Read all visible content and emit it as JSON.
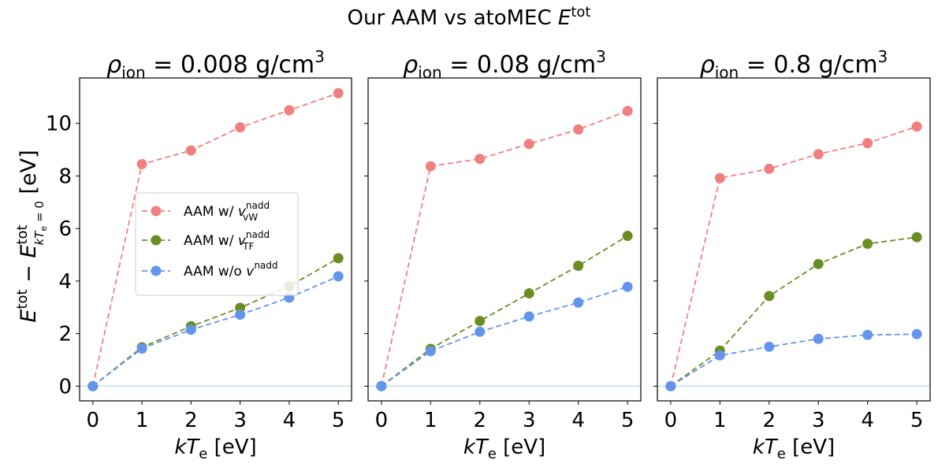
{
  "figure": {
    "suptitle_prefix": "Our AAM vs atoMEC ",
    "suptitle_var": "E",
    "suptitle_sup": "tot"
  },
  "ylabel": {
    "E": "E",
    "tot": "tot",
    "minus": " − ",
    "kTe": "kT",
    "e": "e",
    "eq0": " = 0",
    "unit": " [eV]"
  },
  "xlabel": {
    "k": "kT",
    "e": "e",
    "unit": " [eV]"
  },
  "legend": {
    "entries": [
      {
        "prefix": "AAM w/ ",
        "v": "v",
        "sup": "nadd",
        "sub": "vW"
      },
      {
        "prefix": "AAM w/ ",
        "v": "v",
        "sup": "nadd",
        "sub": "TF"
      },
      {
        "prefix": "AAM w/o ",
        "v": "v",
        "sup": "nadd",
        "sub": ""
      }
    ]
  },
  "colors": {
    "vW": "#f08080",
    "TF": "#6b8e23",
    "none": "#6495ed",
    "baseline": "#add8e6"
  },
  "chart_data": [
    {
      "type": "line",
      "title_rho": "ρ",
      "title_sub": "ion",
      "title_value": " = 0.008 g/cm",
      "title_sup": "3",
      "x": [
        0,
        1,
        2,
        3,
        4,
        5
      ],
      "xticks": [
        "0",
        "1",
        "2",
        "3",
        "4",
        "5"
      ],
      "yticks": [
        "0",
        "2",
        "4",
        "6",
        "8",
        "10"
      ],
      "xlim": [
        -0.27,
        5.27
      ],
      "ylim": [
        -0.56,
        11.73
      ],
      "baseline": 0,
      "series": [
        {
          "name": "AAM w/ v_vW^nadd",
          "key": "vW",
          "values": [
            0,
            8.45,
            8.97,
            9.85,
            10.5,
            11.15
          ]
        },
        {
          "name": "AAM w/ v_TF^nadd",
          "key": "TF",
          "values": [
            0,
            1.48,
            2.28,
            2.98,
            3.8,
            4.87
          ]
        },
        {
          "name": "AAM w/o v^nadd",
          "key": "none",
          "values": [
            0,
            1.43,
            2.15,
            2.72,
            3.37,
            4.18
          ]
        }
      ]
    },
    {
      "type": "line",
      "title_rho": "ρ",
      "title_sub": "ion",
      "title_value": " = 0.08 g/cm",
      "title_sup": "3",
      "x": [
        0,
        1,
        2,
        3,
        4,
        5
      ],
      "xticks": [
        "0",
        "1",
        "2",
        "3",
        "4",
        "5"
      ],
      "yticks": [],
      "xlim": [
        -0.27,
        5.27
      ],
      "ylim": [
        -0.56,
        11.73
      ],
      "baseline": 0,
      "series": [
        {
          "name": "AAM w/ v_vW^nadd",
          "key": "vW",
          "values": [
            0,
            8.37,
            8.65,
            9.22,
            9.77,
            10.47
          ]
        },
        {
          "name": "AAM w/ v_TF^nadd",
          "key": "TF",
          "values": [
            0,
            1.42,
            2.48,
            3.53,
            4.58,
            5.72
          ]
        },
        {
          "name": "AAM w/o v^nadd",
          "key": "none",
          "values": [
            0,
            1.33,
            2.07,
            2.65,
            3.18,
            3.78
          ]
        }
      ]
    },
    {
      "type": "line",
      "title_rho": "ρ",
      "title_sub": "ion",
      "title_value": " = 0.8 g/cm",
      "title_sup": "3",
      "x": [
        0,
        1,
        2,
        3,
        4,
        5
      ],
      "xticks": [
        "0",
        "1",
        "2",
        "3",
        "4",
        "5"
      ],
      "yticks": [],
      "xlim": [
        -0.27,
        5.27
      ],
      "ylim": [
        -0.56,
        11.73
      ],
      "baseline": 0,
      "series": [
        {
          "name": "AAM w/ v_vW^nadd",
          "key": "vW",
          "values": [
            0,
            7.92,
            8.27,
            8.83,
            9.25,
            9.88
          ]
        },
        {
          "name": "AAM w/ v_TF^nadd",
          "key": "TF",
          "values": [
            0,
            1.35,
            3.43,
            4.65,
            5.42,
            5.67
          ]
        },
        {
          "name": "AAM w/o v^nadd",
          "key": "none",
          "values": [
            0,
            1.17,
            1.5,
            1.8,
            1.95,
            1.98
          ]
        }
      ]
    }
  ]
}
